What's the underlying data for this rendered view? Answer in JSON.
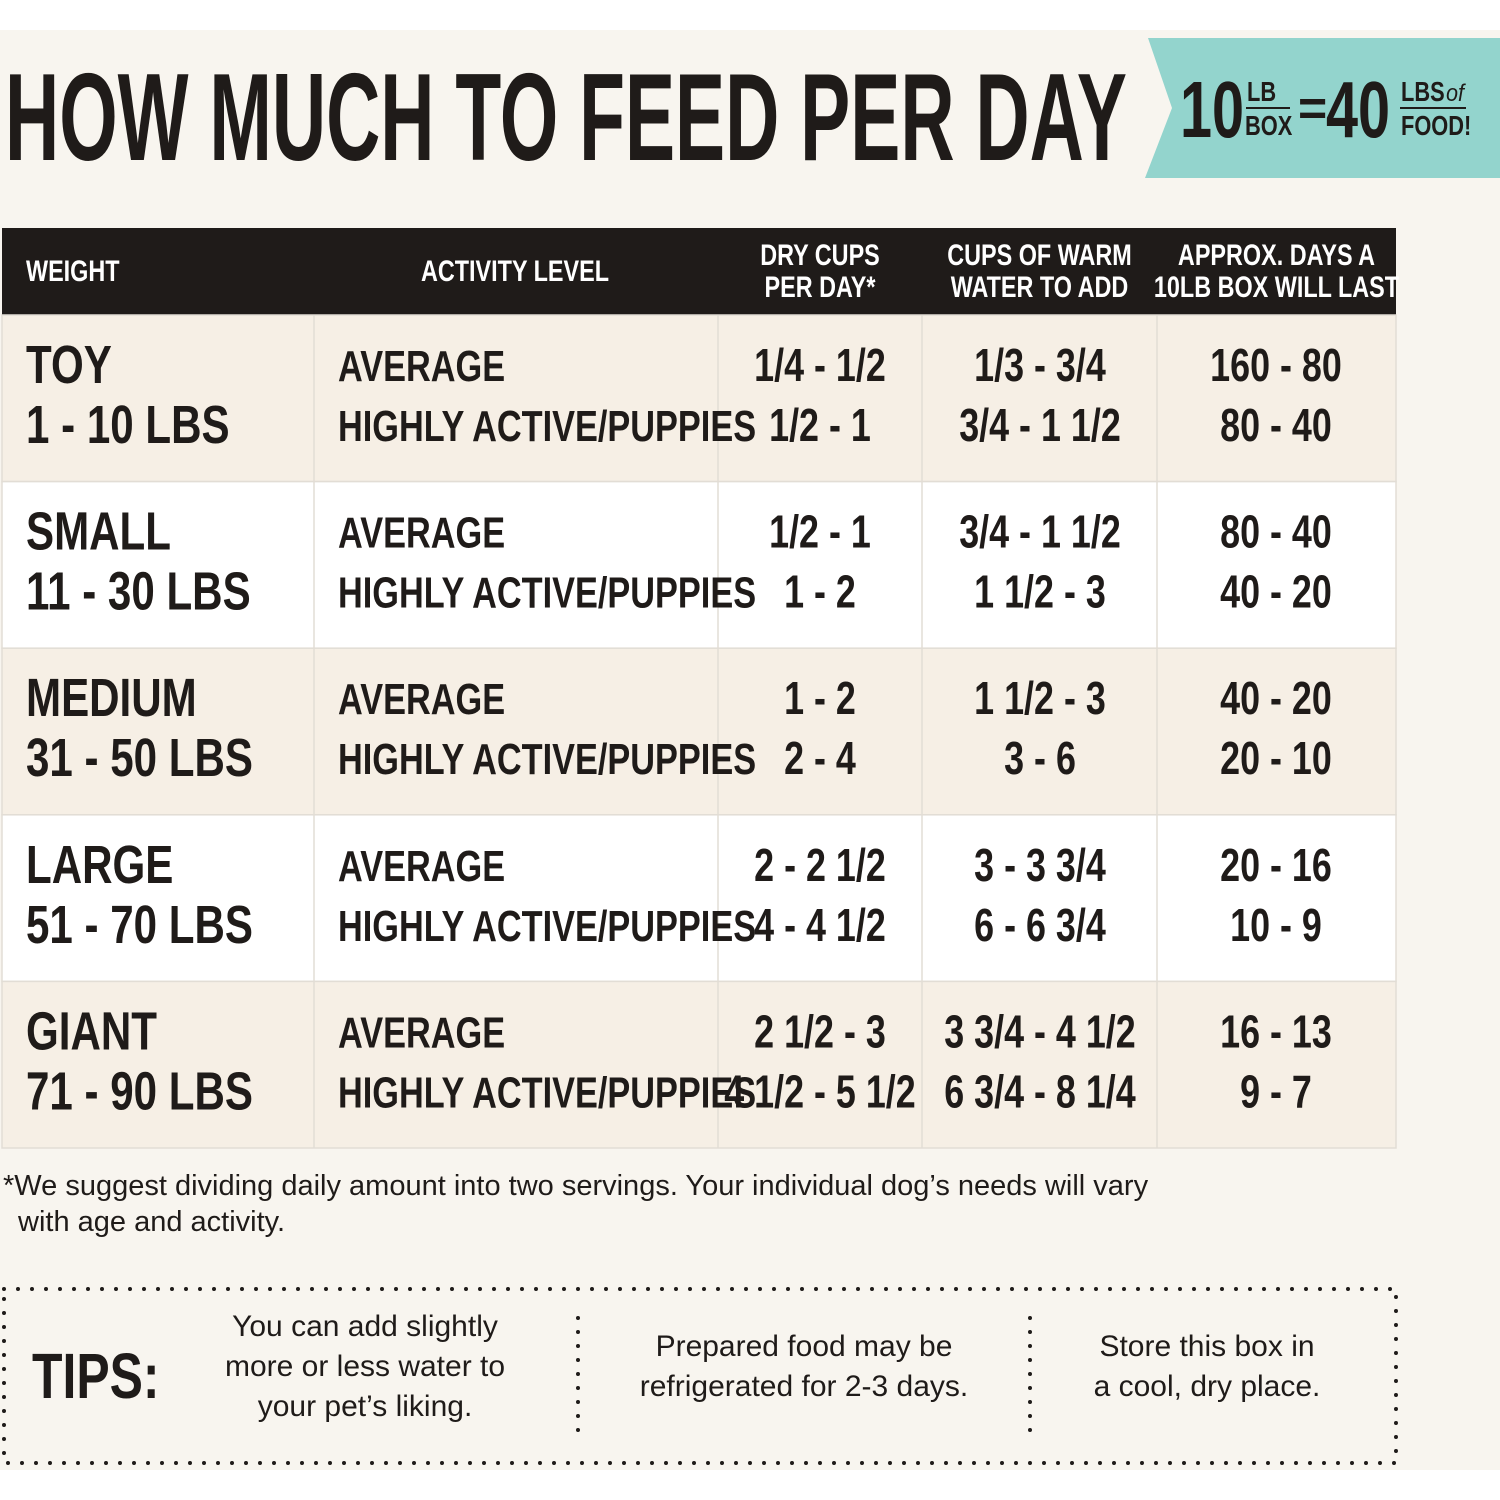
{
  "title": "HOW MUCH TO FEED PER DAY",
  "badge": {
    "box_weight": "10",
    "box_unit_top": "LB",
    "box_unit_bottom": "BOX",
    "equals": "=",
    "food_weight": "40",
    "food_unit_top": "LBS",
    "food_unit_of": "of",
    "food_unit_bottom": "FOOD!"
  },
  "table": {
    "headers": [
      [
        "WEIGHT"
      ],
      [
        "ACTIVITY LEVEL"
      ],
      [
        "DRY CUPS",
        "PER DAY*"
      ],
      [
        "CUPS OF WARM",
        "WATER TO ADD"
      ],
      [
        "APPROX. DAYS A",
        "10LB BOX WILL LAST"
      ]
    ],
    "rows": [
      {
        "size": "TOY",
        "weight": "1 - 10 LBS",
        "activity": [
          "AVERAGE",
          "HIGHLY ACTIVE/PUPPIES"
        ],
        "dry_cups": [
          "1/4 - 1/2",
          "1/2 - 1"
        ],
        "water_cups": [
          "1/3 - 3/4",
          "3/4 - 1 1/2"
        ],
        "days": [
          "160 - 80",
          "80 - 40"
        ]
      },
      {
        "size": "SMALL",
        "weight": "11 - 30 LBS",
        "activity": [
          "AVERAGE",
          "HIGHLY ACTIVE/PUPPIES"
        ],
        "dry_cups": [
          "1/2 - 1",
          "1 - 2"
        ],
        "water_cups": [
          "3/4 - 1 1/2",
          "1 1/2 - 3"
        ],
        "days": [
          "80 - 40",
          "40 - 20"
        ]
      },
      {
        "size": "MEDIUM",
        "weight": "31 - 50 LBS",
        "activity": [
          "AVERAGE",
          "HIGHLY ACTIVE/PUPPIES"
        ],
        "dry_cups": [
          "1 - 2",
          "2 - 4"
        ],
        "water_cups": [
          "1 1/2 - 3",
          "3 - 6"
        ],
        "days": [
          "40 - 20",
          "20 - 10"
        ]
      },
      {
        "size": "LARGE",
        "weight": "51 - 70 LBS",
        "activity": [
          "AVERAGE",
          "HIGHLY ACTIVE/PUPPIES"
        ],
        "dry_cups": [
          "2 - 2 1/2",
          "4 - 4 1/2"
        ],
        "water_cups": [
          "3 - 3 3/4",
          "6 - 6 3/4"
        ],
        "days": [
          "20 - 16",
          "10 - 9"
        ]
      },
      {
        "size": "GIANT",
        "weight": "71 - 90 LBS",
        "activity": [
          "AVERAGE",
          "HIGHLY ACTIVE/PUPPIES"
        ],
        "dry_cups": [
          "2 1/2 - 3",
          "4 1/2 - 5 1/2"
        ],
        "water_cups": [
          "3 3/4 - 4 1/2",
          "6 3/4 - 8 1/4"
        ],
        "days": [
          "16 - 13",
          "9 - 7"
        ]
      }
    ]
  },
  "footnote": [
    "*We suggest dividing daily amount into two servings. Your individual dog’s needs will vary",
    "with age and activity."
  ],
  "tips": {
    "label": "TIPS:",
    "items": [
      [
        "You can add slightly",
        "more or less water to",
        "your pet’s liking."
      ],
      [
        "Prepared food may be",
        "refrigerated for 2-3 days."
      ],
      [
        "Store this box in",
        "a cool, dry place."
      ]
    ]
  }
}
